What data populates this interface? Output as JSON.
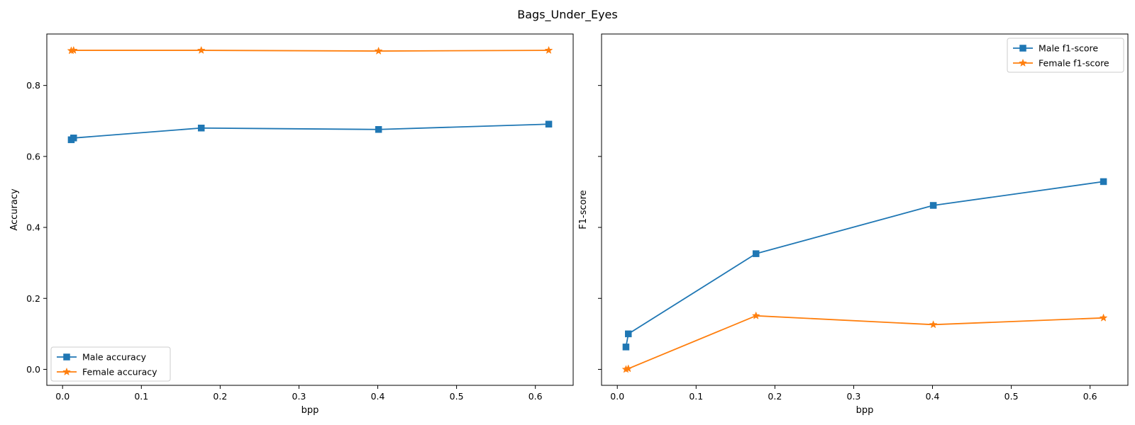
{
  "figure": {
    "suptitle": "Bags_Under_Eyes"
  },
  "chart_data": [
    {
      "type": "line",
      "title": "",
      "xlabel": "bpp",
      "ylabel": "Accuracy",
      "xlim": [
        -0.02,
        0.648
      ],
      "ylim": [
        -0.045,
        0.945
      ],
      "xticks": [
        0.0,
        0.1,
        0.2,
        0.3,
        0.4,
        0.5,
        0.6
      ],
      "xtick_labels": [
        "0.0",
        "0.1",
        "0.2",
        "0.3",
        "0.4",
        "0.5",
        "0.6"
      ],
      "yticks": [
        0.0,
        0.2,
        0.4,
        0.6,
        0.8
      ],
      "ytick_labels": [
        "0.0",
        "0.2",
        "0.4",
        "0.6",
        "0.8"
      ],
      "grid": false,
      "legend_position": "lower-left",
      "series": [
        {
          "name": "Male accuracy",
          "color": "#1f77b4",
          "marker": "square",
          "x": [
            0.011,
            0.014,
            0.176,
            0.401,
            0.617
          ],
          "y": [
            0.647,
            0.652,
            0.68,
            0.676,
            0.691
          ]
        },
        {
          "name": "Female accuracy",
          "color": "#ff7f0e",
          "marker": "star",
          "x": [
            0.011,
            0.014,
            0.176,
            0.401,
            0.617
          ],
          "y": [
            0.898,
            0.899,
            0.899,
            0.897,
            0.899
          ]
        }
      ]
    },
    {
      "type": "line",
      "title": "",
      "xlabel": "bpp",
      "ylabel": "F1-score",
      "xlim": [
        -0.02,
        0.648
      ],
      "ylim": [
        -0.045,
        0.945
      ],
      "xticks": [
        0.0,
        0.1,
        0.2,
        0.3,
        0.4,
        0.5,
        0.6
      ],
      "xtick_labels": [
        "0.0",
        "0.1",
        "0.2",
        "0.3",
        "0.4",
        "0.5",
        "0.6"
      ],
      "yticks": [
        0.0,
        0.2,
        0.4,
        0.6,
        0.8
      ],
      "ytick_labels": [],
      "grid": false,
      "legend_position": "upper-right",
      "series": [
        {
          "name": "Male f1-score",
          "color": "#1f77b4",
          "marker": "square",
          "x": [
            0.011,
            0.014,
            0.176,
            0.401,
            0.617
          ],
          "y": [
            0.063,
            0.1,
            0.326,
            0.462,
            0.529
          ]
        },
        {
          "name": "Female f1-score",
          "color": "#ff7f0e",
          "marker": "star",
          "x": [
            0.011,
            0.014,
            0.176,
            0.401,
            0.617
          ],
          "y": [
            0.0,
            0.002,
            0.151,
            0.126,
            0.145
          ]
        }
      ]
    }
  ]
}
